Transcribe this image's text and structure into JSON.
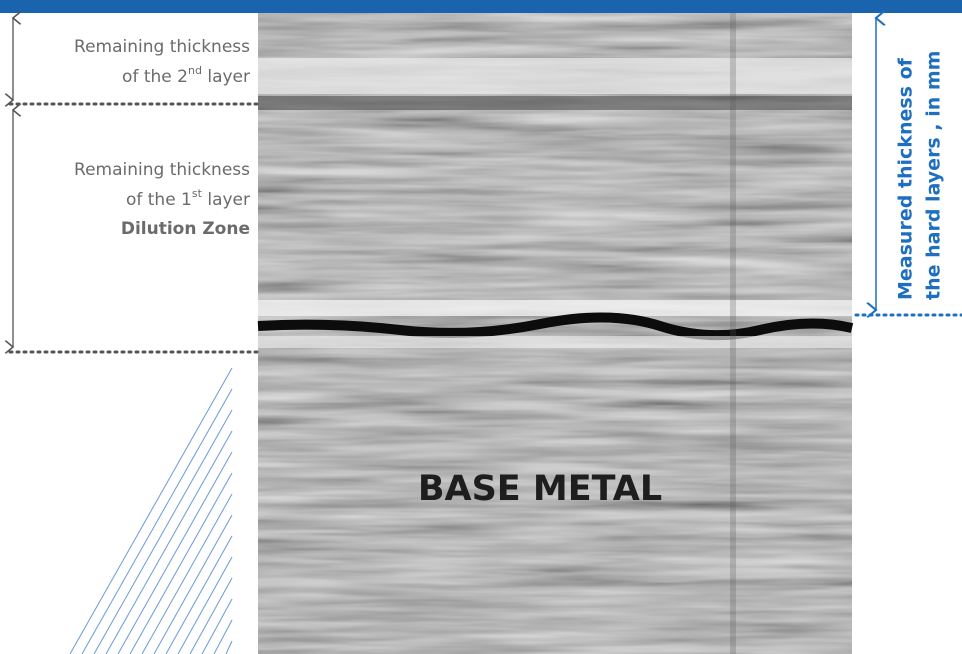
{
  "left_labels": [
    {
      "line1": "Remaining thickness",
      "line2_pre": "of the 2",
      "line2_sup": "nd",
      "line2_post": " layer"
    },
    {
      "line1": "Remaining thickness",
      "line2_pre": "of the 1",
      "line2_sup": "st",
      "line2_post": " layer",
      "line3": "Dilution Zone"
    }
  ],
  "center_label": "BASE METAL",
  "right_label": {
    "line1": "Measured thickness of",
    "line2": "the hard layers , in mm"
  }
}
